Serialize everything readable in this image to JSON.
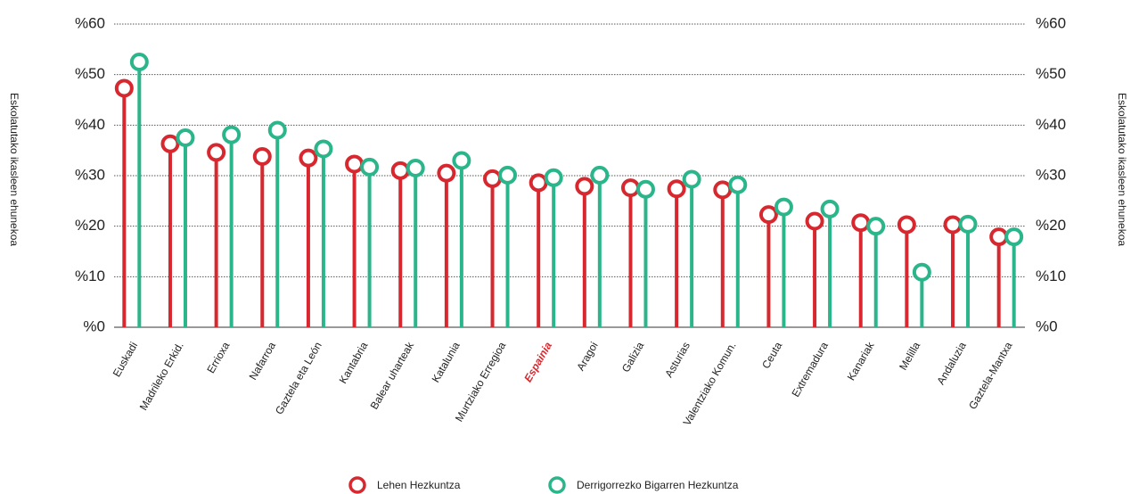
{
  "chart_data": {
    "type": "lollipop",
    "ylabel": "Eskolatutako ikasleen ehunekoa",
    "y2label": "Eskolatutako ikasleen ehunekoa",
    "categories": [
      "Euskadi",
      "Madrileko Erkid.",
      "Errioxa",
      "Nafarroa",
      "Gaztela eta León",
      "Kantabria",
      "Balear uharteak",
      "Katalunia",
      "Murtziako Erregioa",
      "Espainia",
      "Aragoi",
      "Galizia",
      "Asturias",
      "Valentziako Komun.",
      "Ceuta",
      "Extremadura",
      "Kanariak",
      "Melilla",
      "Andaluzia",
      "Gaztela-Mantxa"
    ],
    "highlight": "Espainia",
    "highlight_color": "#d7282f",
    "series": [
      {
        "name": "Lehen Hezkuntza",
        "color": "#d7282f",
        "values": [
          47.3,
          36.3,
          34.6,
          33.8,
          33.5,
          32.3,
          31.0,
          30.5,
          29.4,
          28.6,
          27.9,
          27.6,
          27.4,
          27.2,
          22.3,
          21.0,
          20.7,
          20.3,
          20.3,
          17.9
        ]
      },
      {
        "name": "Derrigorrezko Bigarren Hezkuntza",
        "color": "#2bb58a",
        "values": [
          52.5,
          37.5,
          38.1,
          39.0,
          35.3,
          31.7,
          31.5,
          33.0,
          30.1,
          29.6,
          30.1,
          27.3,
          29.3,
          28.2,
          23.8,
          23.4,
          20.0,
          10.9,
          20.4,
          17.9
        ]
      }
    ],
    "ylim": [
      0,
      60
    ],
    "yticks": [
      {
        "value": 0,
        "label": "%0"
      },
      {
        "value": 10,
        "label": "%10"
      },
      {
        "value": 20,
        "label": "%20"
      },
      {
        "value": 30,
        "label": "%30"
      },
      {
        "value": 40,
        "label": "%40"
      },
      {
        "value": 50,
        "label": "%50"
      },
      {
        "value": 60,
        "label": "%60"
      }
    ],
    "y2lim": [
      0,
      60
    ],
    "y2ticks": [
      {
        "value": 0,
        "label": "%0"
      },
      {
        "value": 10,
        "label": "%10"
      },
      {
        "value": 20,
        "label": "%20"
      },
      {
        "value": 30,
        "label": "%30"
      },
      {
        "value": 40,
        "label": "%40"
      },
      {
        "value": 50,
        "label": "%50"
      },
      {
        "value": 60,
        "label": "%60"
      }
    ],
    "grid": true,
    "legend": "bottom"
  }
}
